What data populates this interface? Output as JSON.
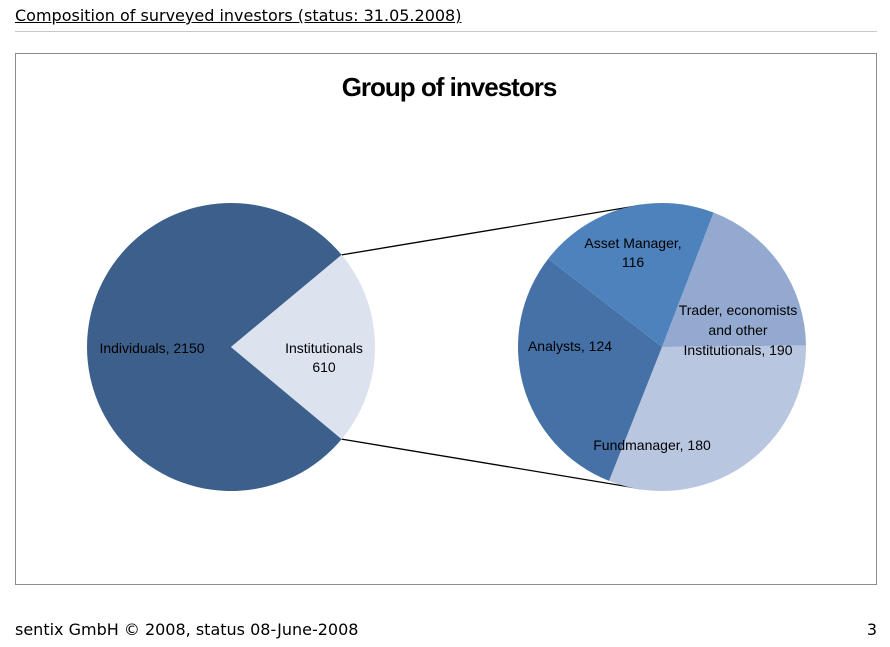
{
  "header": {
    "title": "Composition of surveyed investors (status: 31.05.2008)"
  },
  "footer": {
    "left": "sentix GmbH © 2008, status 08-June-2008",
    "page_number": "3"
  },
  "chart_data": {
    "type": "pie",
    "subtype": "pie-of-pie",
    "title": "Group of investors",
    "primary": {
      "slices": [
        {
          "label": "Individuals",
          "value": 2150,
          "color": "#3c5f8c"
        },
        {
          "label": "Institutionals",
          "value": 610,
          "color": "#dce3ef"
        }
      ]
    },
    "secondary": {
      "of": "Institutionals",
      "slices": [
        {
          "label": "Asset Manager",
          "value": 116,
          "color": "#93a9d0"
        },
        {
          "label": "Trader, economists and other Institutionals",
          "value": 190,
          "color": "#b9c6e0"
        },
        {
          "label": "Fundmanager",
          "value": 180,
          "color": "#4571a6"
        },
        {
          "label": "Analysts",
          "value": 124,
          "color": "#4e82bd"
        }
      ]
    },
    "data_labels": {
      "individuals": "Individuals, 2150",
      "institutionals_line1": "Institutionals",
      "institutionals_line2": "610",
      "asset_manager_line1": "Asset Manager,",
      "asset_manager_line2": "116",
      "trader_line1": "Trader, economists",
      "trader_line2": "and other",
      "trader_line3": "Institutionals, 190",
      "analysts": "Analysts, 124",
      "fundmanager": "Fundmanager, 180"
    }
  }
}
